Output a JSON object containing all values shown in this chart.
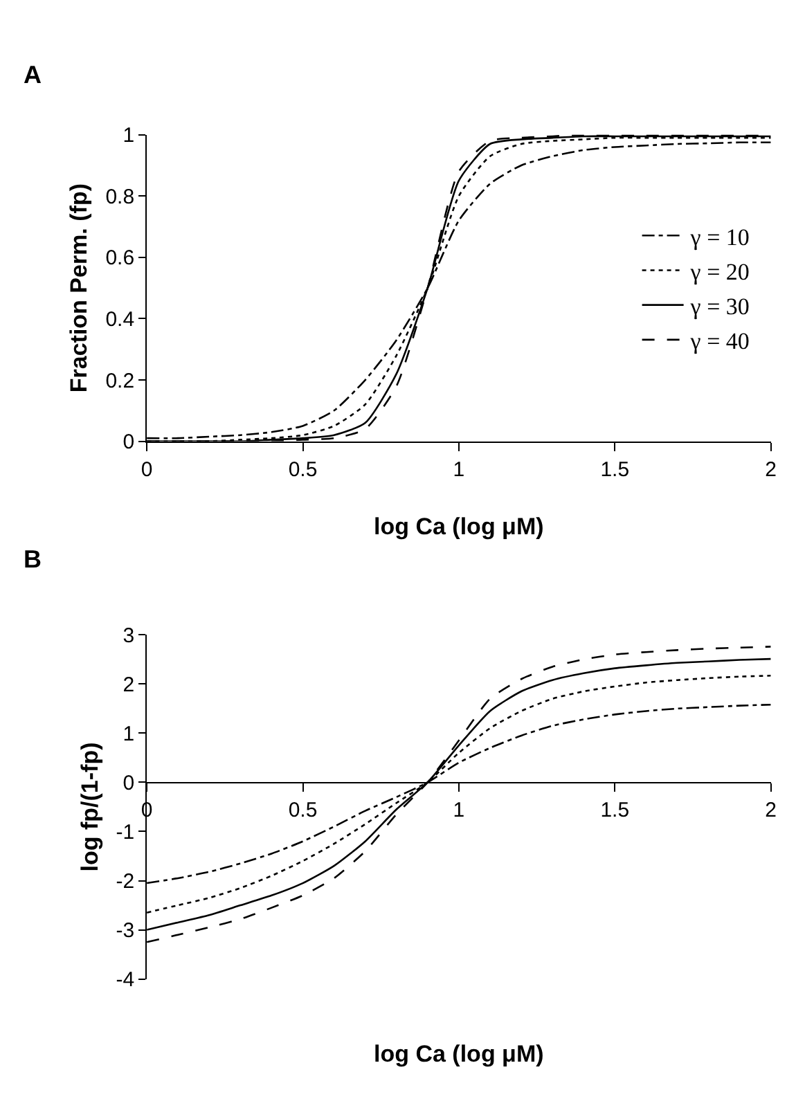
{
  "chart_data": [
    {
      "type": "line",
      "title": "A",
      "xlabel": "log Ca (log μM)",
      "ylabel": "Fraction Perm. (fp)",
      "xlim": [
        0,
        2
      ],
      "ylim": [
        0,
        1
      ],
      "xticks": [
        0,
        0.5,
        1,
        1.5,
        2
      ],
      "yticks": [
        0,
        0.2,
        0.4,
        0.6,
        0.8,
        1
      ],
      "grid": false,
      "legend": "right",
      "marker": "none",
      "x": [
        0,
        0.1,
        0.2,
        0.3,
        0.4,
        0.5,
        0.6,
        0.7,
        0.8,
        0.9,
        1.0,
        1.1,
        1.2,
        1.3,
        1.4,
        1.5,
        1.6,
        1.7,
        1.8,
        1.9,
        2.0
      ],
      "series": [
        {
          "name": "γ = 10",
          "color": "#000000",
          "line_style": "dashdot",
          "values": [
            0.01,
            0.01,
            0.015,
            0.02,
            0.03,
            0.05,
            0.1,
            0.2,
            0.33,
            0.5,
            0.72,
            0.84,
            0.9,
            0.93,
            0.95,
            0.96,
            0.965,
            0.97,
            0.972,
            0.975,
            0.975
          ]
        },
        {
          "name": "γ = 20",
          "color": "#000000",
          "line_style": "dotted",
          "values": [
            0.0,
            0.0,
            0.0,
            0.005,
            0.01,
            0.02,
            0.05,
            0.12,
            0.28,
            0.5,
            0.8,
            0.93,
            0.97,
            0.98,
            0.985,
            0.99,
            0.99,
            0.99,
            0.99,
            0.99,
            0.99
          ]
        },
        {
          "name": "γ = 30",
          "color": "#000000",
          "line_style": "solid",
          "values": [
            0.0,
            0.0,
            0.0,
            0.0,
            0.005,
            0.01,
            0.02,
            0.06,
            0.22,
            0.5,
            0.85,
            0.97,
            0.985,
            0.99,
            0.995,
            0.995,
            0.995,
            0.995,
            0.995,
            0.995,
            0.995
          ]
        },
        {
          "name": "γ = 40",
          "color": "#000000",
          "line_style": "dashed",
          "values": [
            0.0,
            0.0,
            0.0,
            0.0,
            0.0,
            0.005,
            0.01,
            0.04,
            0.18,
            0.5,
            0.88,
            0.98,
            0.99,
            0.995,
            1.0,
            1.0,
            1.0,
            1.0,
            1.0,
            1.0,
            1.0
          ]
        }
      ]
    },
    {
      "type": "line",
      "title": "B",
      "xlabel": "log Ca (log μM)",
      "ylabel": "log fp/(1-fp)",
      "xlim": [
        0,
        2
      ],
      "ylim": [
        -4,
        3
      ],
      "xticks": [
        0,
        0.5,
        1,
        1.5,
        2
      ],
      "yticks": [
        -4,
        -3,
        -2,
        -1,
        0,
        1,
        2,
        3
      ],
      "grid": false,
      "legend": false,
      "marker": "none",
      "x": [
        0,
        0.1,
        0.2,
        0.3,
        0.4,
        0.5,
        0.6,
        0.7,
        0.8,
        0.9,
        1.0,
        1.1,
        1.2,
        1.3,
        1.4,
        1.5,
        1.6,
        1.7,
        1.8,
        1.9,
        2.0
      ],
      "series": [
        {
          "color": "#000000",
          "line_style": "dashdot",
          "values": [
            -2.05,
            -1.95,
            -1.82,
            -1.65,
            -1.45,
            -1.2,
            -0.9,
            -0.58,
            -0.3,
            0,
            0.4,
            0.7,
            0.95,
            1.15,
            1.28,
            1.38,
            1.45,
            1.5,
            1.53,
            1.56,
            1.58
          ]
        },
        {
          "color": "#000000",
          "line_style": "dotted",
          "values": [
            -2.65,
            -2.5,
            -2.35,
            -2.15,
            -1.9,
            -1.6,
            -1.25,
            -0.85,
            -0.42,
            0,
            0.6,
            1.1,
            1.45,
            1.7,
            1.85,
            1.95,
            2.03,
            2.08,
            2.12,
            2.15,
            2.17
          ]
        },
        {
          "color": "#000000",
          "line_style": "solid",
          "values": [
            -3.0,
            -2.85,
            -2.7,
            -2.5,
            -2.3,
            -2.05,
            -1.7,
            -1.2,
            -0.55,
            0,
            0.75,
            1.45,
            1.85,
            2.08,
            2.22,
            2.32,
            2.38,
            2.43,
            2.46,
            2.49,
            2.51
          ]
        },
        {
          "color": "#000000",
          "line_style": "dashed",
          "values": [
            -3.25,
            -3.1,
            -2.95,
            -2.78,
            -2.55,
            -2.3,
            -1.95,
            -1.4,
            -0.65,
            0,
            0.85,
            1.7,
            2.1,
            2.35,
            2.5,
            2.6,
            2.65,
            2.69,
            2.72,
            2.74,
            2.76
          ]
        }
      ]
    }
  ]
}
